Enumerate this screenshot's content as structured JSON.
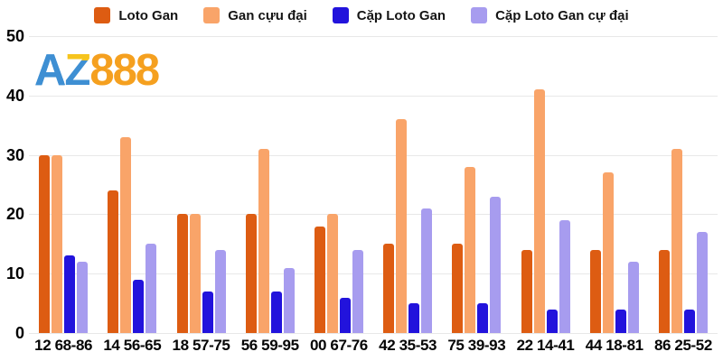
{
  "logo": {
    "part1": "A",
    "part2": "Z",
    "part3": "888"
  },
  "colors": {
    "background": "#ffffff",
    "gridline": "#e8e8e8",
    "axis_text": "#000000",
    "legend_text": "#151515",
    "logo_blue": "#3e8fd3",
    "logo_yellow": "#f6c41d",
    "logo_orange": "#f5a01f"
  },
  "chart_data": {
    "type": "bar",
    "title": "",
    "xlabel": "",
    "ylabel": "",
    "ylim": [
      0,
      50
    ],
    "yticks": [
      0,
      10,
      20,
      30,
      40,
      50
    ],
    "grid": true,
    "legend_position": "top",
    "categories": [
      "12 68-86",
      "14 56-65",
      "18 57-75",
      "56 59-95",
      "00 67-76",
      "42 35-53",
      "75 39-93",
      "22 14-41",
      "44 18-81",
      "86 25-52"
    ],
    "series": [
      {
        "name": "Loto Gan",
        "color": "#dd5c12",
        "values": [
          30,
          24,
          20,
          20,
          18,
          15,
          15,
          14,
          14,
          14
        ]
      },
      {
        "name": "Gan cựu đại",
        "color": "#f9a469",
        "values": [
          30,
          33,
          20,
          31,
          20,
          36,
          28,
          41,
          27,
          31
        ]
      },
      {
        "name": "Cặp Loto Gan",
        "color": "#2213dc",
        "values": [
          13,
          9,
          7,
          7,
          6,
          5,
          5,
          4,
          4,
          4
        ]
      },
      {
        "name": "Cặp Loto Gan cự đại",
        "color": "#a79cef",
        "values": [
          12,
          15,
          14,
          11,
          14,
          21,
          23,
          19,
          12,
          17
        ]
      }
    ]
  }
}
